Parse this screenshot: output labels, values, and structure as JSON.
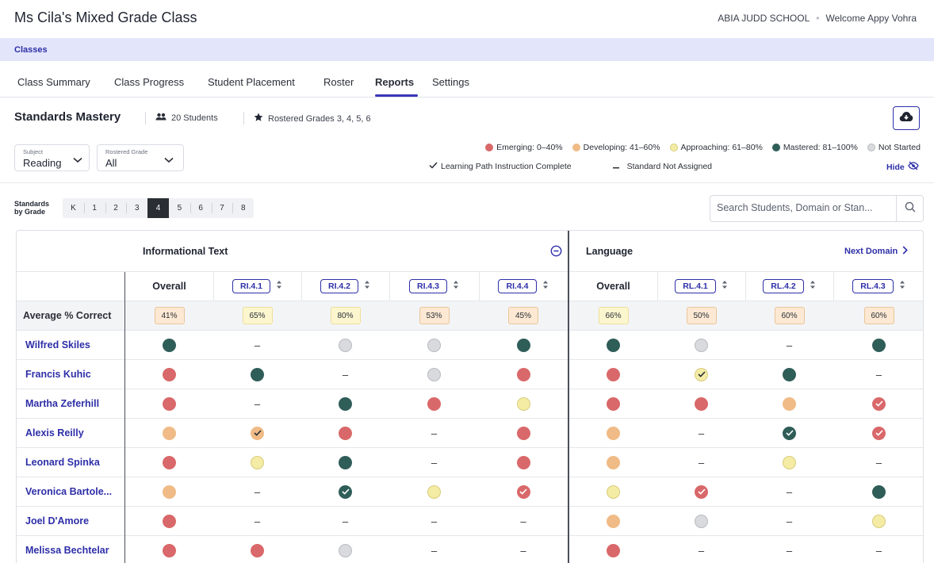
{
  "header": {
    "class_title": "Ms Cila's Mixed Grade Class",
    "school": "ABIA JUDD SCHOOL",
    "separator": "•",
    "welcome": "Welcome Appy Vohra"
  },
  "breadcrumb": {
    "classes": "Classes"
  },
  "tabs": [
    {
      "label": "Class Summary",
      "active": false
    },
    {
      "label": "Class Progress",
      "active": false
    },
    {
      "label": "Student Placement",
      "active": false
    },
    {
      "label": "Roster",
      "active": false
    },
    {
      "label": "Reports",
      "active": true
    },
    {
      "label": "Settings",
      "active": false
    }
  ],
  "standards": {
    "title": "Standards Mastery",
    "students": "20 Students",
    "grades": "Rostered Grades 3, 4, 5, 6"
  },
  "filters": {
    "subject_label": "Subject",
    "subject_value": "Reading",
    "grade_label": "Rostered Grade",
    "grade_value": "All"
  },
  "legend": {
    "emerging": "Emerging: 0–40%",
    "developing": "Developing: 41–60%",
    "approaching": "Approaching: 61–80%",
    "mastered": "Mastered: 81–100%",
    "not_started": "Not Started",
    "complete": "Learning Path Instruction Complete",
    "not_assigned": "Standard Not Assigned",
    "hide": "Hide"
  },
  "colors": {
    "emerging": "#d9686a",
    "developing": "#f0bb86",
    "approaching": "#f4eca5",
    "mastered": "#2f5d58",
    "not_started": "#d9dadd",
    "accent": "#2e2fa8"
  },
  "grade_nav": {
    "label_line1": "Standards",
    "label_line2": "by Grade",
    "grades": [
      "K",
      "1",
      "2",
      "3",
      "4",
      "5",
      "6",
      "7",
      "8"
    ],
    "active": "4"
  },
  "search": {
    "placeholder": "Search Students, Domain or Stan..."
  },
  "table": {
    "domains": [
      {
        "title": "Informational Text"
      },
      {
        "title": "Language",
        "next": "Next Domain"
      }
    ],
    "columns": [
      "Overall",
      "RI.4.1",
      "RI.4.2",
      "RI.4.3",
      "RI.4.4",
      "Overall",
      "RL.4.1",
      "RL.4.2",
      "RL.4.3"
    ],
    "average_label": "Average % Correct",
    "averages": [
      {
        "value": "41%",
        "tone": "orange"
      },
      {
        "value": "65%",
        "tone": "yellow"
      },
      {
        "value": "80%",
        "tone": "yellow"
      },
      {
        "value": "53%",
        "tone": "orange"
      },
      {
        "value": "45%",
        "tone": "orange"
      },
      {
        "value": "66%",
        "tone": "yellow"
      },
      {
        "value": "50%",
        "tone": "orange"
      },
      {
        "value": "60%",
        "tone": "orange"
      },
      {
        "value": "60%",
        "tone": "orange"
      }
    ],
    "students": [
      {
        "name": "Wilfred Skiles",
        "cells": [
          "mastered",
          "none",
          "not_started",
          "not_started",
          "mastered",
          "mastered",
          "not_started",
          "none",
          "mastered"
        ]
      },
      {
        "name": "Francis Kuhic",
        "cells": [
          "emerging",
          "mastered",
          "none",
          "not_started",
          "emerging",
          "emerging",
          "approaching_check",
          "mastered",
          "none"
        ]
      },
      {
        "name": "Martha Zeferhill",
        "cells": [
          "emerging",
          "none",
          "mastered",
          "emerging",
          "approaching",
          "emerging",
          "emerging",
          "developing",
          "emerging_check"
        ]
      },
      {
        "name": "Alexis Reilly",
        "cells": [
          "developing",
          "developing_check",
          "emerging",
          "none",
          "emerging",
          "developing",
          "none",
          "mastered_check",
          "emerging_check"
        ]
      },
      {
        "name": "Leonard Spinka",
        "cells": [
          "emerging",
          "approaching",
          "mastered",
          "none",
          "emerging",
          "developing",
          "none",
          "approaching",
          "none"
        ]
      },
      {
        "name": "Veronica Bartole...",
        "cells": [
          "developing",
          "none",
          "mastered_check",
          "approaching",
          "emerging_check",
          "approaching",
          "emerging_check",
          "none",
          "mastered"
        ]
      },
      {
        "name": "Joel D'Amore",
        "cells": [
          "emerging",
          "none",
          "none",
          "none",
          "none",
          "developing",
          "not_started",
          "none",
          "approaching"
        ]
      },
      {
        "name": "Melissa Bechtelar",
        "cells": [
          "emerging",
          "emerging",
          "not_started",
          "none",
          "none",
          "emerging",
          "none",
          "none",
          "none"
        ]
      }
    ]
  }
}
